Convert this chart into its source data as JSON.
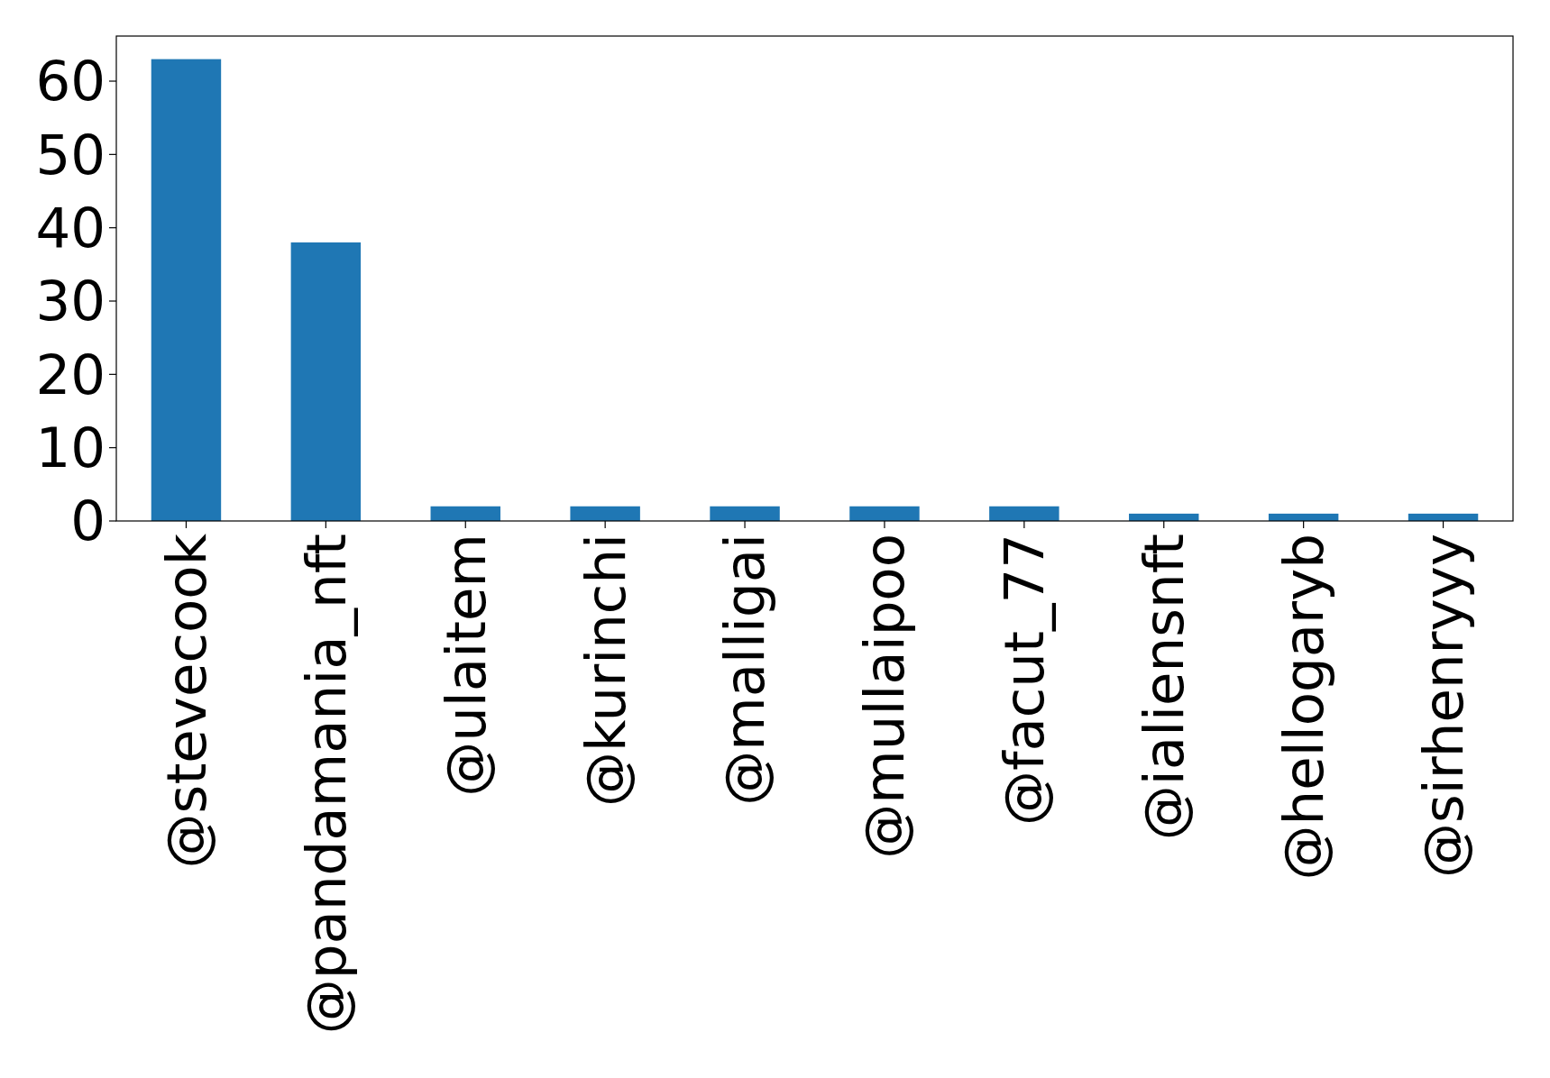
{
  "chart_data": {
    "type": "bar",
    "categories": [
      "@stevecook",
      "@pandamania_nft",
      "@ulaitem",
      "@kurinchi",
      "@malligai",
      "@mullaipoo",
      "@facut_77",
      "@ialiensnft",
      "@hellogaryb",
      "@sirhenryyy"
    ],
    "values": [
      63,
      38,
      2,
      2,
      2,
      2,
      2,
      1,
      1,
      1
    ],
    "color": "#1f77b4",
    "ylim": [
      0,
      66.15
    ],
    "yticks": [
      0,
      10,
      20,
      30,
      40,
      50,
      60
    ],
    "grid": false
  }
}
